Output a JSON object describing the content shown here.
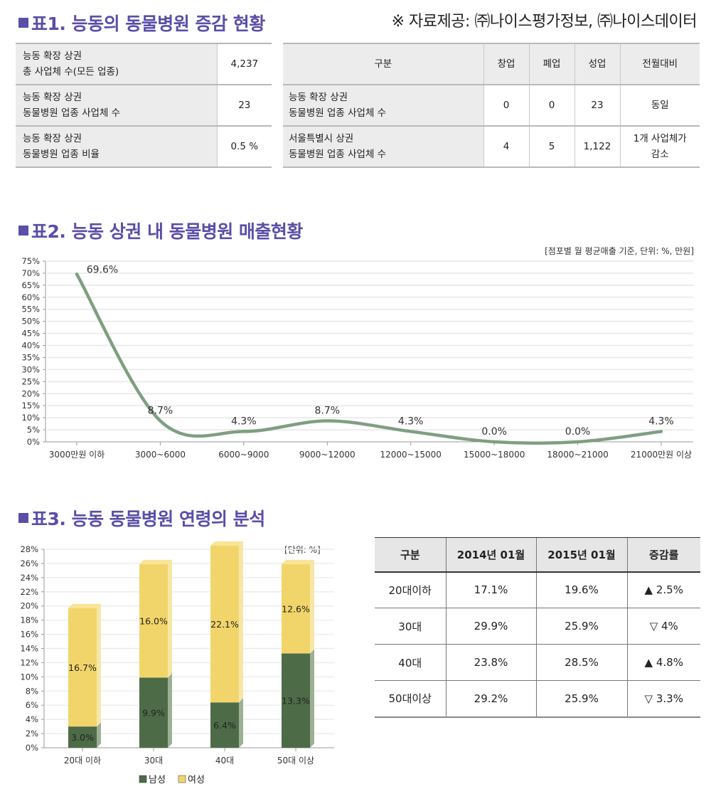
{
  "section1": {
    "title": "표1. 능동의 동물병원 증감 현황",
    "source_note": "※ 자료제공: ㈜나이스평가정보, ㈜나이스데이터",
    "left_table": [
      {
        "label_line1": "능동 확장 상권",
        "label_line2": "총 사업체 수(모든 업종)",
        "value": "4,237"
      },
      {
        "label_line1": "능동 확장 상권",
        "label_line2": "동물병원 업종 사업체 수",
        "value": "23"
      },
      {
        "label_line1": "능동 확장 상권",
        "label_line2": "동물병원 업종 비율",
        "value": "0.5 %"
      }
    ],
    "right_table": {
      "headers": [
        "구분",
        "창업",
        "폐업",
        "성업",
        "전월대비"
      ],
      "rows": [
        {
          "label_line1": "능동 확장 상권",
          "label_line2": "동물병원 업종 사업체 수",
          "open": "0",
          "close": "0",
          "operating": "23",
          "change_line1": "동일",
          "change_line2": ""
        },
        {
          "label_line1": "서울특별시 상권",
          "label_line2": "동물병원 업종 사업체 수",
          "open": "4",
          "close": "5",
          "operating": "1,122",
          "change_line1": "1개 사업체가",
          "change_line2": "감소"
        }
      ]
    }
  },
  "section2": {
    "title": "표2. 능동 상권 내 동물병원 매출현황",
    "unit_note": "[점포별 월 평균매출 기준, 단위: %, 만원]"
  },
  "section3": {
    "title": "표3. 능동 동물병원 연령의 분석",
    "unit_note": "[단위: %]",
    "table": {
      "headers": [
        "구분",
        "2014년 01월",
        "2015년 01월",
        "증감률"
      ],
      "rows": [
        {
          "label": "20대이하",
          "y2014": "17.1%",
          "y2015": "19.6%",
          "change": "▲ 2.5%"
        },
        {
          "label": "30대",
          "y2014": "29.9%",
          "y2015": "25.9%",
          "change": "▽ 4%"
        },
        {
          "label": "40대",
          "y2014": "23.8%",
          "y2015": "28.5%",
          "change": "▲ 4.8%"
        },
        {
          "label": "50대이상",
          "y2014": "29.2%",
          "y2015": "25.9%",
          "change": "▽ 3.3%"
        }
      ]
    }
  },
  "chart_data": [
    {
      "type": "line",
      "title": "표2. 능동 상권 내 동물병원 매출현황",
      "xlabel": "",
      "ylabel": "",
      "categories": [
        "3000만원 이하",
        "3000~6000",
        "6000~9000",
        "9000~12000",
        "12000~15000",
        "15000~18000",
        "18000~21000",
        "21000만원 이상"
      ],
      "values": [
        69.6,
        8.7,
        4.3,
        8.7,
        4.3,
        0.0,
        0.0,
        4.3
      ],
      "data_labels": [
        "69.6%",
        "8.7%",
        "4.3%",
        "8.7%",
        "4.3%",
        "0.0%",
        "0.0%",
        "4.3%"
      ],
      "ylim": [
        0,
        75
      ],
      "yticks": [
        "0%",
        "5%",
        "10%",
        "15%",
        "20%",
        "25%",
        "30%",
        "35%",
        "40%",
        "45%",
        "50%",
        "55%",
        "60%",
        "65%",
        "70%",
        "75%"
      ],
      "grid": true,
      "line_color": "#7f9f80"
    },
    {
      "type": "bar",
      "stacked": true,
      "title": "표3. 능동 동물병원 연령의 분석",
      "categories": [
        "20대 이하",
        "30대",
        "40대",
        "50대 이상"
      ],
      "series": [
        {
          "name": "남성",
          "values": [
            3.0,
            9.9,
            6.4,
            13.3
          ],
          "labels": [
            "3.0%",
            "9.9%",
            "6.4%",
            "13.3%"
          ],
          "color": "#4e6b47"
        },
        {
          "name": "여성",
          "values": [
            16.7,
            16.0,
            22.1,
            12.6
          ],
          "labels": [
            "16.7%",
            "16.0%",
            "22.1%",
            "12.6%"
          ],
          "color": "#f2d56a"
        }
      ],
      "ylim": [
        0,
        28
      ],
      "yticks": [
        "0%",
        "2%",
        "4%",
        "6%",
        "8%",
        "10%",
        "12%",
        "14%",
        "16%",
        "18%",
        "20%",
        "22%",
        "24%",
        "26%",
        "28%"
      ],
      "legend": "bottom",
      "grid": true
    }
  ]
}
